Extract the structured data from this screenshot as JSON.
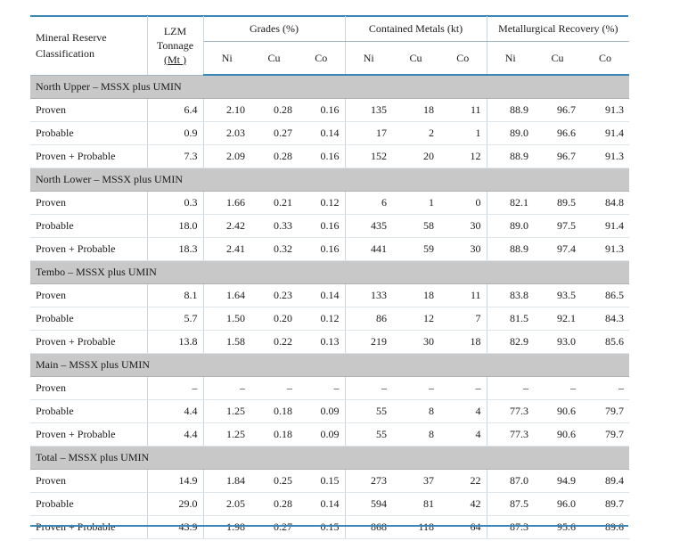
{
  "header": {
    "classification": "Mineral Reserve Classification",
    "tonnage_line1": "LZM",
    "tonnage_line2": "Tonnage",
    "tonnage_unit": "(Mt )",
    "grades": "Grades (%)",
    "contained": "Contained Metals (kt)",
    "recovery": "Metallurgical Recovery (%)",
    "sub": [
      "Ni",
      "Cu",
      "Co",
      "Ni",
      "Cu",
      "Co",
      "Ni",
      "Cu",
      "Co"
    ]
  },
  "sections": [
    {
      "title": "North Upper – MSSX plus UMIN",
      "rows": [
        {
          "label": "Proven",
          "values": [
            "6.4",
            "2.10",
            "0.28",
            "0.16",
            "135",
            "18",
            "11",
            "88.9",
            "96.7",
            "91.3"
          ]
        },
        {
          "label": "Probable",
          "values": [
            "0.9",
            "2.03",
            "0.27",
            "0.14",
            "17",
            "2",
            "1",
            "89.0",
            "96.6",
            "91.4"
          ]
        },
        {
          "label": "Proven + Probable",
          "values": [
            "7.3",
            "2.09",
            "0.28",
            "0.16",
            "152",
            "20",
            "12",
            "88.9",
            "96.7",
            "91.3"
          ]
        }
      ]
    },
    {
      "title": "North Lower – MSSX plus UMIN",
      "rows": [
        {
          "label": "Proven",
          "values": [
            "0.3",
            "1.66",
            "0.21",
            "0.12",
            "6",
            "1",
            "0",
            "82.1",
            "89.5",
            "84.8"
          ]
        },
        {
          "label": "Probable",
          "values": [
            "18.0",
            "2.42",
            "0.33",
            "0.16",
            "435",
            "58",
            "30",
            "89.0",
            "97.5",
            "91.4"
          ]
        },
        {
          "label": "Proven + Probable",
          "values": [
            "18.3",
            "2.41",
            "0.32",
            "0.16",
            "441",
            "59",
            "30",
            "88.9",
            "97.4",
            "91.3"
          ]
        }
      ]
    },
    {
      "title": "Tembo – MSSX plus UMIN",
      "rows": [
        {
          "label": "Proven",
          "values": [
            "8.1",
            "1.64",
            "0.23",
            "0.14",
            "133",
            "18",
            "11",
            "83.8",
            "93.5",
            "86.5"
          ]
        },
        {
          "label": "Probable",
          "values": [
            "5.7",
            "1.50",
            "0.20",
            "0.12",
            "86",
            "12",
            "7",
            "81.5",
            "92.1",
            "84.3"
          ]
        },
        {
          "label": "Proven + Probable",
          "values": [
            "13.8",
            "1.58",
            "0.22",
            "0.13",
            "219",
            "30",
            "18",
            "82.9",
            "93.0",
            "85.6"
          ]
        }
      ]
    },
    {
      "title": "Main – MSSX plus UMIN",
      "rows": [
        {
          "label": "Proven",
          "values": [
            "–",
            "–",
            "–",
            "–",
            "–",
            "–",
            "–",
            "–",
            "–",
            "–"
          ]
        },
        {
          "label": "Probable",
          "values": [
            "4.4",
            "1.25",
            "0.18",
            "0.09",
            "55",
            "8",
            "4",
            "77.3",
            "90.6",
            "79.7"
          ]
        },
        {
          "label": "Proven + Probable",
          "values": [
            "4.4",
            "1.25",
            "0.18",
            "0.09",
            "55",
            "8",
            "4",
            "77.3",
            "90.6",
            "79.7"
          ]
        }
      ]
    },
    {
      "title": "Total – MSSX plus UMIN",
      "rows": [
        {
          "label": "Proven",
          "values": [
            "14.9",
            "1.84",
            "0.25",
            "0.15",
            "273",
            "37",
            "22",
            "87.0",
            "94.9",
            "89.4"
          ]
        },
        {
          "label": "Probable",
          "values": [
            "29.0",
            "2.05",
            "0.28",
            "0.14",
            "594",
            "81",
            "42",
            "87.5",
            "96.0",
            "89.7"
          ]
        },
        {
          "label": "Proven + Probable",
          "values": [
            "43.9",
            "1.98",
            "0.27",
            "0.15",
            "868",
            "118",
            "64",
            "87.3",
            "95.6",
            "89.6"
          ]
        }
      ]
    }
  ]
}
